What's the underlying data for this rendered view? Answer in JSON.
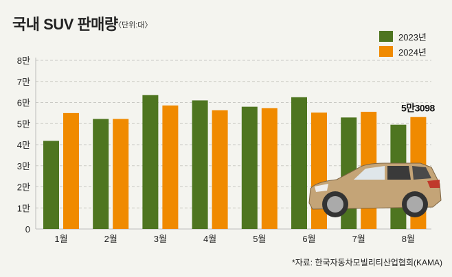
{
  "header": {
    "title": "국내 SUV 판매량",
    "unit": "〈단위:대〉"
  },
  "footer": {
    "source": "*자료: 한국자동차모빌리티산업협회(KAMA)"
  },
  "colors": {
    "y2023": "#4e7520",
    "y2024": "#f08a00",
    "background": "#f4f4ef"
  },
  "chart_data": {
    "type": "bar",
    "title": "국내 SUV 판매량",
    "unit": "대",
    "categories": [
      "1월",
      "2월",
      "3월",
      "4월",
      "5월",
      "6월",
      "7월",
      "8월"
    ],
    "series": [
      {
        "name": "2023년",
        "values": [
          41800,
          52200,
          63500,
          61000,
          58000,
          62500,
          52900,
          49500
        ]
      },
      {
        "name": "2024년",
        "values": [
          55000,
          52200,
          58600,
          56300,
          57300,
          55200,
          55600,
          53098
        ]
      }
    ],
    "yticks": [
      "0",
      "1만",
      "2만",
      "3만",
      "4만",
      "5만",
      "6만",
      "7만",
      "8만"
    ],
    "ylim": [
      0,
      80000
    ],
    "grid": true,
    "legend": "top-right",
    "annotations": [
      {
        "category": "8월",
        "series": "2024년",
        "label": "5만3098"
      }
    ]
  }
}
